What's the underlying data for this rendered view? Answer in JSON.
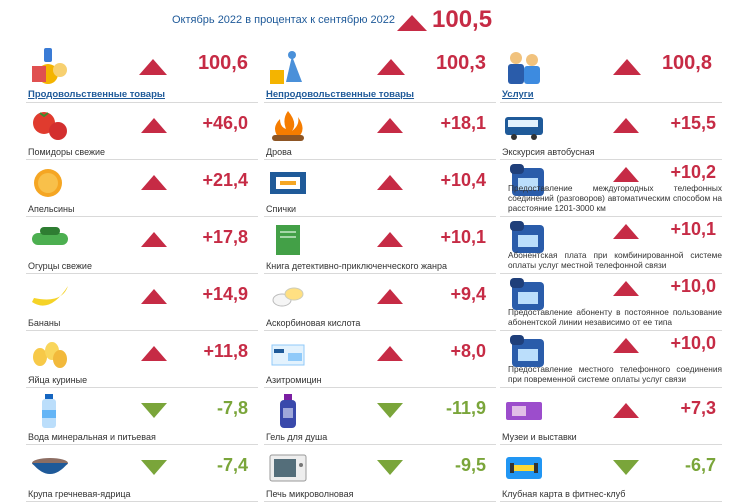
{
  "header": {
    "label": "Октябрь 2022 в процентах к сентябрю 2022",
    "value": "100,5"
  },
  "colors": {
    "up": "#c62b45",
    "down": "#7aa53a",
    "accent": "#1f5a99"
  },
  "columns": [
    {
      "name": "Продовольственные товары",
      "value": "100,6",
      "icon": "grocery-icon",
      "items": [
        {
          "label": "Помидоры свежие",
          "value": "+46,0",
          "dir": "up",
          "icon": "tomato-icon"
        },
        {
          "label": "Апельсины",
          "value": "+21,4",
          "dir": "up",
          "icon": "orange-icon"
        },
        {
          "label": "Огурцы свежие",
          "value": "+17,8",
          "dir": "up",
          "icon": "cucumber-icon"
        },
        {
          "label": "Бананы",
          "value": "+14,9",
          "dir": "up",
          "icon": "banana-icon"
        },
        {
          "label": "Яйца куриные",
          "value": "+11,8",
          "dir": "up",
          "icon": "eggs-icon"
        },
        {
          "label": "Вода минеральная и питьевая",
          "value": "-7,8",
          "dir": "down",
          "icon": "water-bottle-icon"
        },
        {
          "label": "Крупа гречневая-ядрица",
          "value": "-7,4",
          "dir": "down",
          "icon": "buckwheat-bowl-icon"
        }
      ]
    },
    {
      "name": "Непродовольственные товары",
      "value": "100,3",
      "icon": "non-food-icon",
      "items": [
        {
          "label": "Дрова",
          "value": "+18,1",
          "dir": "up",
          "icon": "firewood-icon"
        },
        {
          "label": "Спички",
          "value": "+10,4",
          "dir": "up",
          "icon": "matches-icon"
        },
        {
          "label": "Книга детективно-приключенческого жанра",
          "value": "+10,1",
          "dir": "up",
          "icon": "book-icon"
        },
        {
          "label": "Аскорбиновая кислота",
          "value": "+9,4",
          "dir": "up",
          "icon": "pills-icon"
        },
        {
          "label": "Азитромицин",
          "value": "+8,0",
          "dir": "up",
          "icon": "medicine-box-icon"
        },
        {
          "label": "Гель для душа",
          "value": "-11,9",
          "dir": "down",
          "icon": "shower-gel-icon"
        },
        {
          "label": "Печь микроволновая",
          "value": "-9,5",
          "dir": "down",
          "icon": "microwave-icon"
        }
      ]
    },
    {
      "name": "Услуги",
      "value": "100,8",
      "icon": "services-icon",
      "items": [
        {
          "label": "Экскурсия автобусная",
          "value": "+15,5",
          "dir": "up",
          "icon": "bus-icon"
        },
        {
          "label": "Предоставление междугородных телефонных соединений (разговоров) автоматическим способом на расстояние 1201-3000 км",
          "value": "+10,2",
          "dir": "up",
          "icon": "phone-icon",
          "multiline": true
        },
        {
          "label": "Абонентская плата при комбинированной системе оплаты услуг местной телефонной связи",
          "value": "+10,1",
          "dir": "up",
          "icon": "phone-icon",
          "multiline": true
        },
        {
          "label": "Предоставление абоненту в постоянное пользование абонентской линии независимо от ее типа",
          "value": "+10,0",
          "dir": "up",
          "icon": "phone-icon",
          "multiline": true
        },
        {
          "label": "Предоставление местного телефонного соединения при повременной системе оплаты услуг связи",
          "value": "+10,0",
          "dir": "up",
          "icon": "phone-icon",
          "multiline": true
        },
        {
          "label": "Музеи и выставки",
          "value": "+7,3",
          "dir": "up",
          "icon": "ticket-icon"
        },
        {
          "label": "Клубная карта в фитнес-клуб",
          "value": "-6,7",
          "dir": "down",
          "icon": "fitness-card-icon"
        }
      ]
    }
  ]
}
